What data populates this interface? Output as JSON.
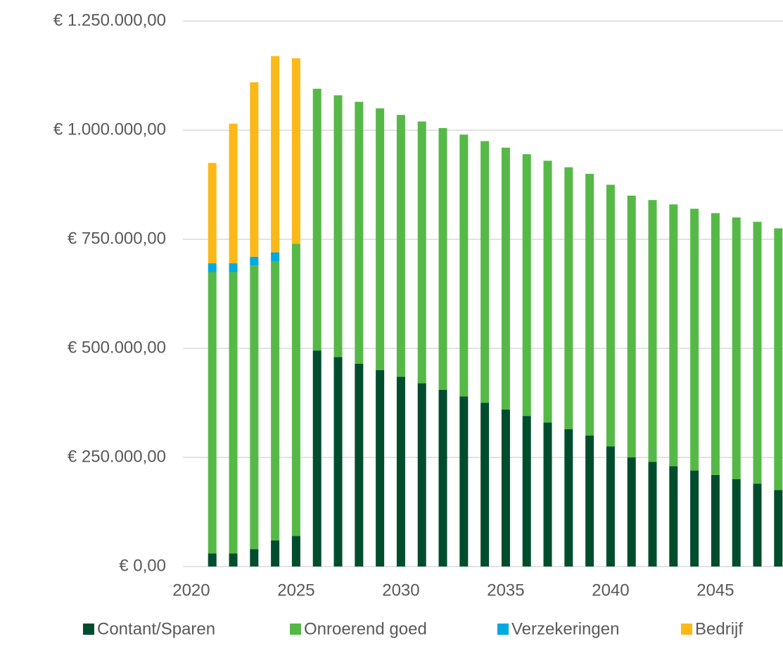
{
  "chart_data": {
    "type": "stacked-bar",
    "x": [
      2021,
      2022,
      2023,
      2024,
      2025,
      2026,
      2027,
      2028,
      2029,
      2030,
      2031,
      2032,
      2033,
      2034,
      2035,
      2036,
      2037,
      2038,
      2039,
      2040,
      2041,
      2042,
      2043,
      2044,
      2045,
      2046,
      2047,
      2048
    ],
    "series": [
      {
        "name": "Contant/Sparen",
        "color": "#004d2e",
        "values": [
          30000,
          30000,
          40000,
          60000,
          70000,
          495000,
          480000,
          465000,
          450000,
          435000,
          420000,
          405000,
          390000,
          375000,
          360000,
          345000,
          330000,
          315000,
          300000,
          275000,
          250000,
          240000,
          230000,
          220000,
          210000,
          200000,
          190000,
          175000
        ]
      },
      {
        "name": "Onroerend goed",
        "color": "#56b947",
        "values": [
          645000,
          645000,
          650000,
          640000,
          670000,
          600000,
          600000,
          600000,
          600000,
          600000,
          600000,
          600000,
          600000,
          600000,
          600000,
          600000,
          600000,
          600000,
          600000,
          600000,
          600000,
          600000,
          600000,
          600000,
          600000,
          600000,
          600000,
          600000
        ]
      },
      {
        "name": "Verzekeringen",
        "color": "#00a9e0",
        "values": [
          20000,
          20000,
          20000,
          20000,
          0,
          0,
          0,
          0,
          0,
          0,
          0,
          0,
          0,
          0,
          0,
          0,
          0,
          0,
          0,
          0,
          0,
          0,
          0,
          0,
          0,
          0,
          0,
          0
        ]
      },
      {
        "name": "Bedrijf",
        "color": "#fbb919",
        "values": [
          230000,
          320000,
          400000,
          450000,
          425000,
          0,
          0,
          0,
          0,
          0,
          0,
          0,
          0,
          0,
          0,
          0,
          0,
          0,
          0,
          0,
          0,
          0,
          0,
          0,
          0,
          0,
          0,
          0
        ]
      }
    ],
    "xlim": [
      2019.6,
      2048.22
    ],
    "xticks": [
      2020,
      2025,
      2030,
      2035,
      2040,
      2045
    ],
    "ylim": [
      0,
      1250000
    ],
    "yticks": [
      {
        "value": 0,
        "label": "€ 0,00"
      },
      {
        "value": 250000,
        "label": "€ 250.000,00"
      },
      {
        "value": 500000,
        "label": "€ 500.000,00"
      },
      {
        "value": 750000,
        "label": "€ 750.000,00"
      },
      {
        "value": 1000000,
        "label": "€ 1.000.000,00"
      },
      {
        "value": 1250000,
        "label": "€ 1.250.000,00"
      }
    ],
    "grid": true,
    "legend": "bottom"
  }
}
